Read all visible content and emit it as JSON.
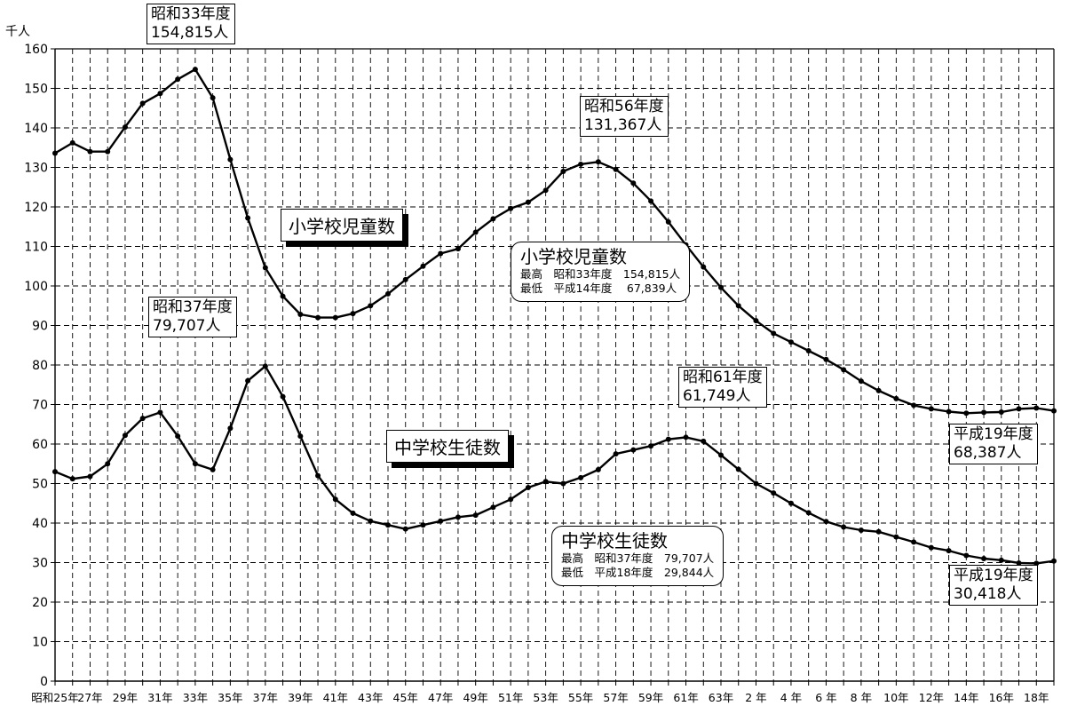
{
  "chart_data": {
    "type": "line",
    "y_unit_label": "千人",
    "ylim": [
      0,
      160
    ],
    "y_ticks": [
      "0",
      "10",
      "20",
      "30",
      "40",
      "50",
      "60",
      "70",
      "80",
      "90",
      "100",
      "110",
      "120",
      "130",
      "140",
      "150",
      "160"
    ],
    "grid": true,
    "x_tick_labels": [
      "昭和25年",
      "27年",
      "29年",
      "31年",
      "33年",
      "35年",
      "37年",
      "39年",
      "41年",
      "43年",
      "45年",
      "47年",
      "49年",
      "51年",
      "53年",
      "55年",
      "57年",
      "59年",
      "61年",
      "63年",
      "2 年",
      "4 年",
      "6 年",
      "8 年",
      "10年",
      "12年",
      "14年",
      "16年",
      "18年"
    ],
    "series": [
      {
        "name": "小学校児童数",
        "values": [
          133.6,
          136.2,
          134.0,
          134.0,
          140.2,
          146.2,
          148.7,
          152.3,
          154.8,
          147.6,
          132.0,
          117.2,
          104.6,
          97.4,
          92.8,
          92.0,
          92.0,
          93.0,
          95.0,
          98.0,
          101.6,
          105.0,
          108.2,
          109.4,
          113.6,
          117.0,
          119.6,
          121.2,
          124.2,
          129.0,
          130.8,
          131.4,
          129.5,
          126.0,
          121.5,
          116.2,
          110.4,
          104.8,
          99.6,
          95.0,
          91.2,
          88.0,
          85.8,
          83.6,
          81.4,
          78.8,
          75.9,
          73.5,
          71.5,
          69.8,
          68.9,
          68.2,
          67.8,
          68.0,
          68.1,
          68.9,
          69.1,
          68.4
        ]
      },
      {
        "name": "中学校生徒数",
        "values": [
          53.0,
          51.2,
          51.8,
          55.0,
          62.2,
          66.5,
          68.0,
          62.0,
          55.0,
          53.5,
          64.0,
          76.0,
          79.7,
          72.0,
          62.0,
          52.0,
          46.0,
          42.5,
          40.5,
          39.5,
          38.5,
          39.5,
          40.5,
          41.5,
          42.0,
          44.0,
          46.0,
          49.0,
          50.5,
          50.0,
          51.5,
          53.5,
          57.5,
          58.5,
          59.5,
          61.2,
          61.7,
          60.7,
          57.2,
          53.6,
          50.0,
          47.6,
          45.0,
          42.6,
          40.4,
          39.0,
          38.2,
          37.8,
          36.5,
          35.2,
          33.8,
          33.0,
          31.8,
          31.0,
          30.6,
          29.9,
          29.8,
          30.4
        ]
      }
    ],
    "annotations": [
      {
        "line1": "昭和33年度",
        "line2": "154,815人"
      },
      {
        "line1": "昭和56年度",
        "line2": "131,367人"
      },
      {
        "line1": "昭和37年度",
        "line2": " 79,707人"
      },
      {
        "line1": "昭和61年度",
        "line2": "61,749人"
      },
      {
        "line1": "平成19年度",
        "line2": "68,387人"
      },
      {
        "line1": "平成19年度",
        "line2": "30,418人"
      }
    ],
    "series_labels": [
      "小学校児童数",
      "中学校生徒数"
    ],
    "summary_boxes": [
      {
        "title": "小学校児童数",
        "max_row": "最高　昭和33年度　154,815人",
        "min_row": "最低　平成14年度　 67,839人"
      },
      {
        "title": "中学校生徒数",
        "max_row": "最高　昭和37年度　79,707人",
        "min_row": "最低　平成18年度　29,844人"
      }
    ],
    "colors": {
      "line": "#000000",
      "grid": "#000000",
      "background": "#ffffff"
    }
  }
}
